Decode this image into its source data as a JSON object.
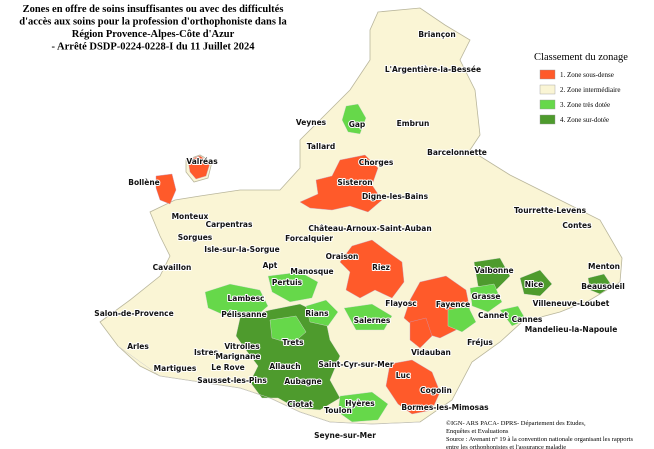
{
  "title": [
    "Zones en offre de soins insuffisantes ou avec des difficultés",
    "d'accès aux soins pour la profession d'orthophoniste dans la",
    "Région Provence-Alpes-Côte d'Azur",
    "- Arrêté DSDP-0224-0228-I du 11 Juillet 2024"
  ],
  "legend": {
    "title": "Classement du zonage",
    "items": [
      {
        "label": "1. Zone sous-dense",
        "color": "#ff5a2a"
      },
      {
        "label": "2. Zone intermédiaire",
        "color": "#faf5d5"
      },
      {
        "label": "3. Zone très dotée",
        "color": "#66d84a"
      },
      {
        "label": "4. Zone sur-dotée",
        "color": "#4e9b2d"
      }
    ]
  },
  "towns": [
    "Briançon",
    "L'Argentière-la-Bessée",
    "Gap",
    "Veynes",
    "Embrun",
    "Tallard",
    "Barcelonnette",
    "Chorges",
    "Valréas",
    "Bollène",
    "Sisteron",
    "Digne-les-Bains",
    "Monteux",
    "Carpentras",
    "Château-Arnoux-Saint-Auban",
    "Tourrette-Levens",
    "Contes",
    "Sorgues",
    "Isle-sur-la-Sorgue",
    "Forcalquier",
    "Cavaillon",
    "Apt",
    "Oraison",
    "Manosque",
    "Riez",
    "Menton",
    "Valbonne",
    "Pertuis",
    "Nice",
    "Grasse",
    "Beausoleil",
    "Lambesc",
    "Flayosc",
    "Fayence",
    "Villeneuve-Loubet",
    "Salon-de-Provence",
    "Pélissanne",
    "Rians",
    "Salernes",
    "Cannet",
    "Cannes",
    "Mandelieu-la-Napoule",
    "Trets",
    "Vitrolles",
    "Fréjus",
    "Arles",
    "Istres",
    "Marignane",
    "Vidauban",
    "Le Rove",
    "Allauch",
    "Saint-Cyr-sur-Mer",
    "Martigues",
    "Luc",
    "Sausset-les-Pins",
    "Aubagne",
    "Cogolin",
    "Ciotat",
    "Hyères",
    "Bormes-les-Mimosas",
    "Toulon",
    "Seyne-sur-Mer"
  ],
  "source": [
    "©IGN- ARS PACA- DPRS- Département des Etudes,",
    "Enquêtes et Evaluations",
    "Source : Avenant n° 19 à la convention nationale organisant les rapports",
    "entre les orthophonistes et l'assurance maladie"
  ]
}
